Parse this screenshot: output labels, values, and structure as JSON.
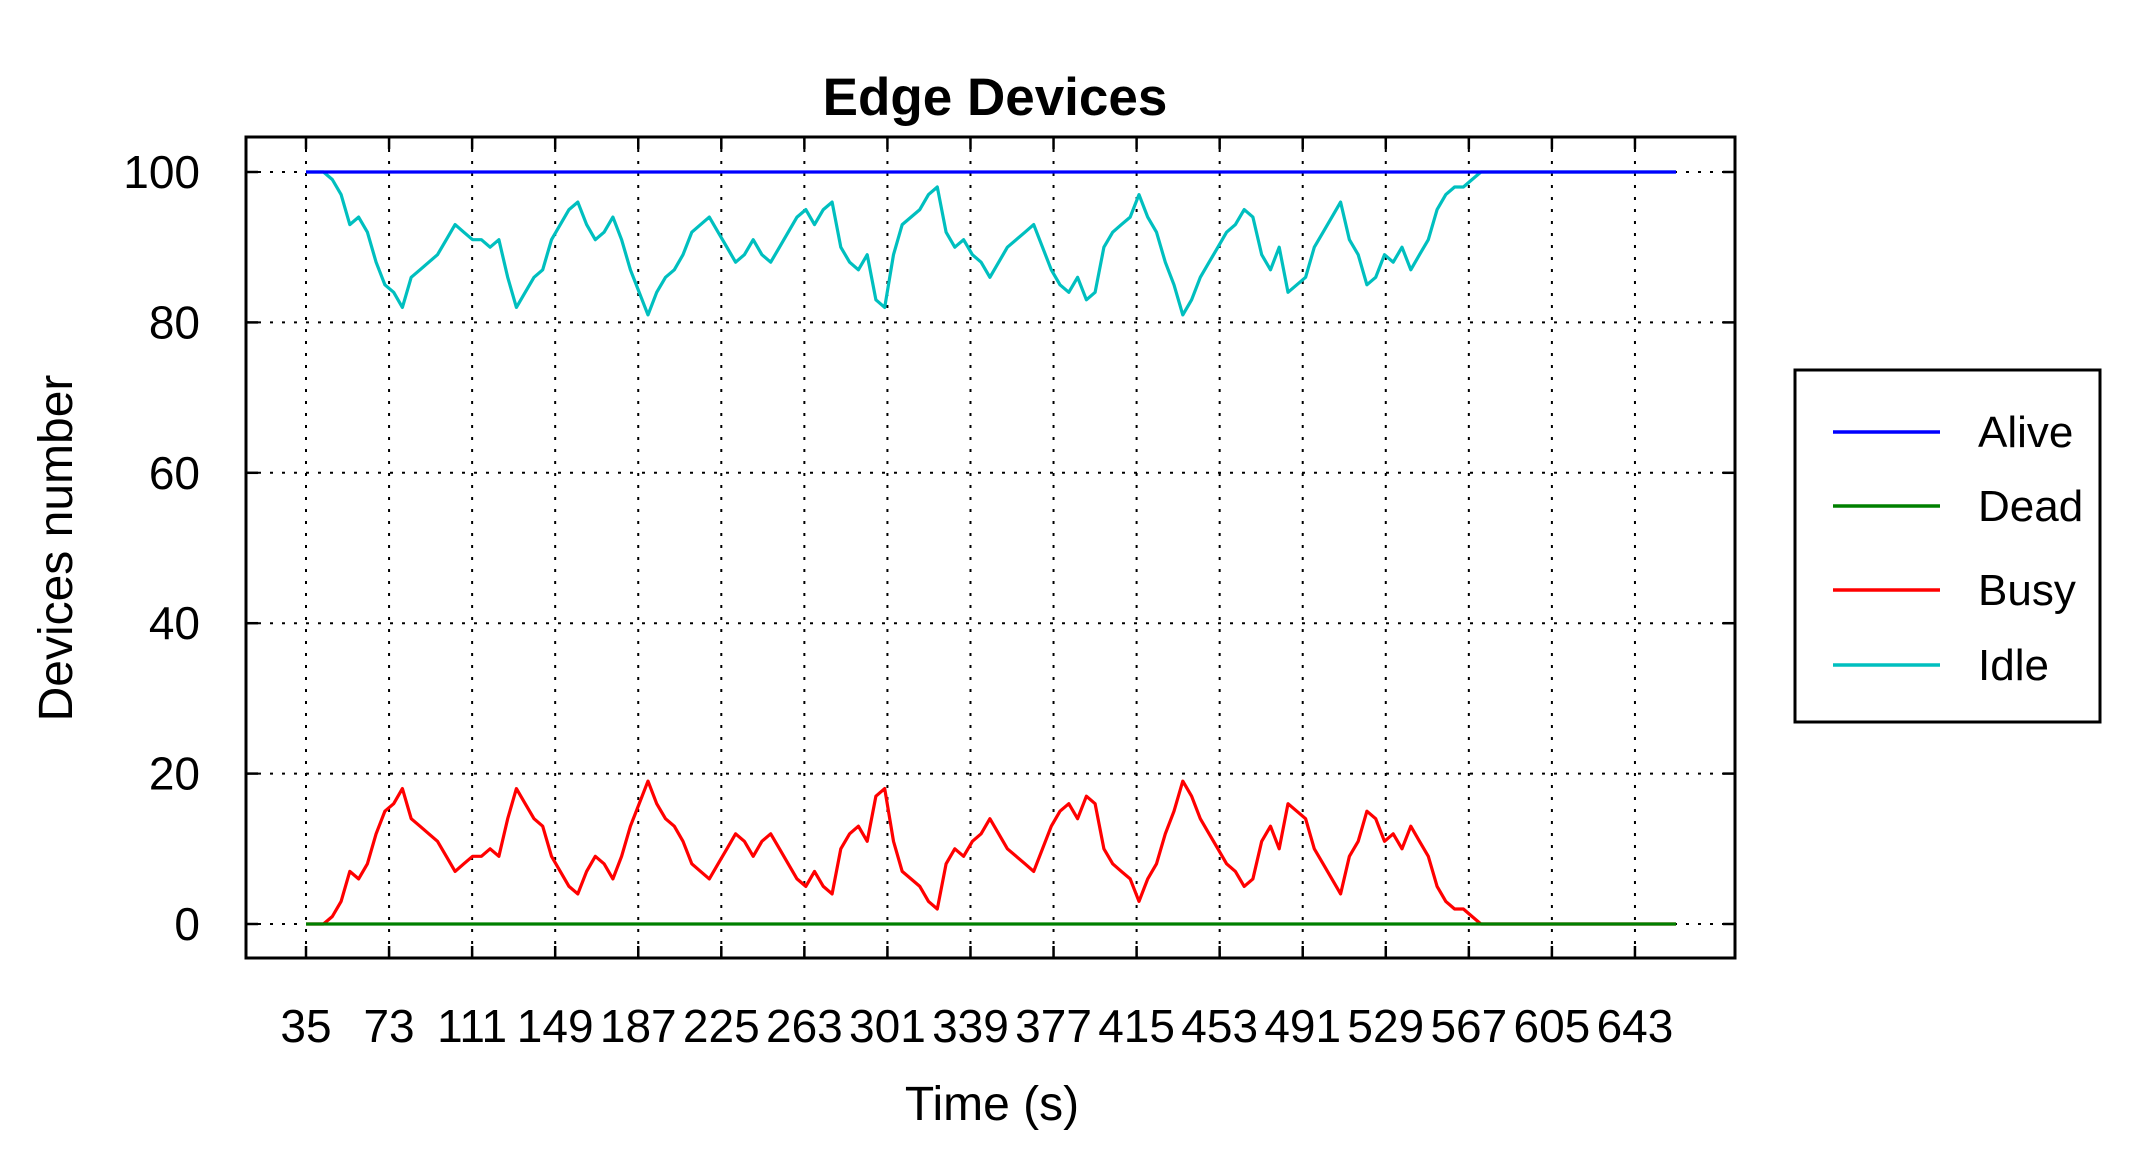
{
  "chart_data": {
    "type": "line",
    "title": "Edge Devices",
    "xlabel": "Time (s)",
    "ylabel": "Devices number",
    "ylim": [
      0,
      100
    ],
    "yticks": [
      0,
      20,
      40,
      60,
      80,
      100
    ],
    "xtick_labels": [
      "35",
      "73",
      "111",
      "149",
      "187",
      "225",
      "263",
      "301",
      "339",
      "377",
      "415",
      "453",
      "491",
      "529",
      "567",
      "605",
      "643"
    ],
    "xlim": [
      35,
      660
    ],
    "grid": true,
    "legend_position": "right",
    "series": [
      {
        "name": "Alive",
        "color": "#0000ff",
        "x": [
          35,
          660
        ],
        "y": [
          100,
          100
        ]
      },
      {
        "name": "Dead",
        "color": "#008000",
        "x": [
          35,
          660
        ],
        "y": [
          0,
          0
        ]
      },
      {
        "name": "Busy",
        "color": "#ff0000",
        "x": [
          35,
          43,
          47,
          51,
          55,
          59,
          63,
          67,
          71,
          75,
          79,
          83,
          87,
          91,
          95,
          99,
          103,
          107,
          111,
          115,
          119,
          123,
          127,
          131,
          135,
          139,
          143,
          147,
          151,
          155,
          159,
          163,
          167,
          171,
          175,
          179,
          183,
          187,
          191,
          195,
          199,
          203,
          207,
          211,
          215,
          219,
          223,
          227,
          231,
          235,
          239,
          243,
          247,
          251,
          255,
          259,
          263,
          267,
          271,
          275,
          279,
          283,
          287,
          291,
          295,
          299,
          303,
          307,
          311,
          315,
          319,
          323,
          327,
          331,
          335,
          339,
          343,
          347,
          351,
          355,
          359,
          363,
          367,
          371,
          375,
          379,
          383,
          387,
          391,
          395,
          399,
          403,
          407,
          411,
          415,
          419,
          423,
          427,
          431,
          435,
          439,
          443,
          447,
          451,
          455,
          459,
          463,
          467,
          471,
          475,
          479,
          483,
          487,
          491,
          495,
          499,
          503,
          507,
          511,
          515,
          519,
          523,
          527,
          531,
          535,
          539,
          543,
          547,
          551,
          555,
          559,
          563,
          567,
          571,
          575,
          579,
          583,
          587,
          591,
          595,
          599,
          603,
          607,
          611,
          615,
          619,
          623,
          627,
          631,
          635,
          639,
          643,
          647,
          651,
          655,
          660
        ],
        "y": [
          0,
          0,
          1,
          3,
          7,
          6,
          8,
          12,
          15,
          16,
          18,
          14,
          13,
          12,
          11,
          9,
          7,
          8,
          9,
          9,
          10,
          9,
          14,
          18,
          16,
          14,
          13,
          9,
          7,
          5,
          4,
          7,
          9,
          8,
          6,
          9,
          13,
          16,
          19,
          16,
          14,
          13,
          11,
          8,
          7,
          6,
          8,
          10,
          12,
          11,
          9,
          11,
          12,
          10,
          8,
          6,
          5,
          7,
          5,
          4,
          10,
          12,
          13,
          11,
          17,
          18,
          11,
          7,
          6,
          5,
          3,
          2,
          8,
          10,
          9,
          11,
          12,
          14,
          12,
          10,
          9,
          8,
          7,
          10,
          13,
          15,
          16,
          14,
          17,
          16,
          10,
          8,
          7,
          6,
          3,
          6,
          8,
          12,
          15,
          19,
          17,
          14,
          12,
          10,
          8,
          7,
          5,
          6,
          11,
          13,
          10,
          16,
          15,
          14,
          10,
          8,
          6,
          4,
          9,
          11,
          15,
          14,
          11,
          12,
          10,
          13,
          11,
          9,
          5,
          3,
          2,
          2,
          1,
          0,
          0,
          0,
          0,
          0,
          0,
          0,
          0,
          0,
          0,
          0,
          0,
          0,
          0,
          0,
          0,
          0,
          0,
          0,
          0,
          0,
          0,
          0
        ]
      },
      {
        "name": "Idle",
        "color": "#00bfbf",
        "x": [
          35,
          43,
          47,
          51,
          55,
          59,
          63,
          67,
          71,
          75,
          79,
          83,
          87,
          91,
          95,
          99,
          103,
          107,
          111,
          115,
          119,
          123,
          127,
          131,
          135,
          139,
          143,
          147,
          151,
          155,
          159,
          163,
          167,
          171,
          175,
          179,
          183,
          187,
          191,
          195,
          199,
          203,
          207,
          211,
          215,
          219,
          223,
          227,
          231,
          235,
          239,
          243,
          247,
          251,
          255,
          259,
          263,
          267,
          271,
          275,
          279,
          283,
          287,
          291,
          295,
          299,
          303,
          307,
          311,
          315,
          319,
          323,
          327,
          331,
          335,
          339,
          343,
          347,
          351,
          355,
          359,
          363,
          367,
          371,
          375,
          379,
          383,
          387,
          391,
          395,
          399,
          403,
          407,
          411,
          415,
          419,
          423,
          427,
          431,
          435,
          439,
          443,
          447,
          451,
          455,
          459,
          463,
          467,
          471,
          475,
          479,
          483,
          487,
          491,
          495,
          499,
          503,
          507,
          511,
          515,
          519,
          523,
          527,
          531,
          535,
          539,
          543,
          547,
          551,
          555,
          559,
          563,
          567,
          571,
          575,
          579,
          583,
          587,
          591,
          595,
          599,
          603,
          607,
          611,
          615,
          619,
          623,
          627,
          631,
          635,
          639,
          643,
          647,
          651,
          655,
          660
        ],
        "y": [
          100,
          100,
          99,
          97,
          93,
          94,
          92,
          88,
          85,
          84,
          82,
          86,
          87,
          88,
          89,
          91,
          93,
          92,
          91,
          91,
          90,
          91,
          86,
          82,
          84,
          86,
          87,
          91,
          93,
          95,
          96,
          93,
          91,
          92,
          94,
          91,
          87,
          84,
          81,
          84,
          86,
          87,
          89,
          92,
          93,
          94,
          92,
          90,
          88,
          89,
          91,
          89,
          88,
          90,
          92,
          94,
          95,
          93,
          95,
          96,
          90,
          88,
          87,
          89,
          83,
          82,
          89,
          93,
          94,
          95,
          97,
          98,
          92,
          90,
          91,
          89,
          88,
          86,
          88,
          90,
          91,
          92,
          93,
          90,
          87,
          85,
          84,
          86,
          83,
          84,
          90,
          92,
          93,
          94,
          97,
          94,
          92,
          88,
          85,
          81,
          83,
          86,
          88,
          90,
          92,
          93,
          95,
          94,
          89,
          87,
          90,
          84,
          85,
          86,
          90,
          92,
          94,
          96,
          91,
          89,
          85,
          86,
          89,
          88,
          90,
          87,
          89,
          91,
          95,
          97,
          98,
          98,
          99,
          100,
          100,
          100,
          100,
          100,
          100,
          100,
          100,
          100,
          100,
          100,
          100,
          100,
          100,
          100,
          100,
          100,
          100,
          100,
          100,
          100,
          100,
          100
        ]
      }
    ]
  }
}
